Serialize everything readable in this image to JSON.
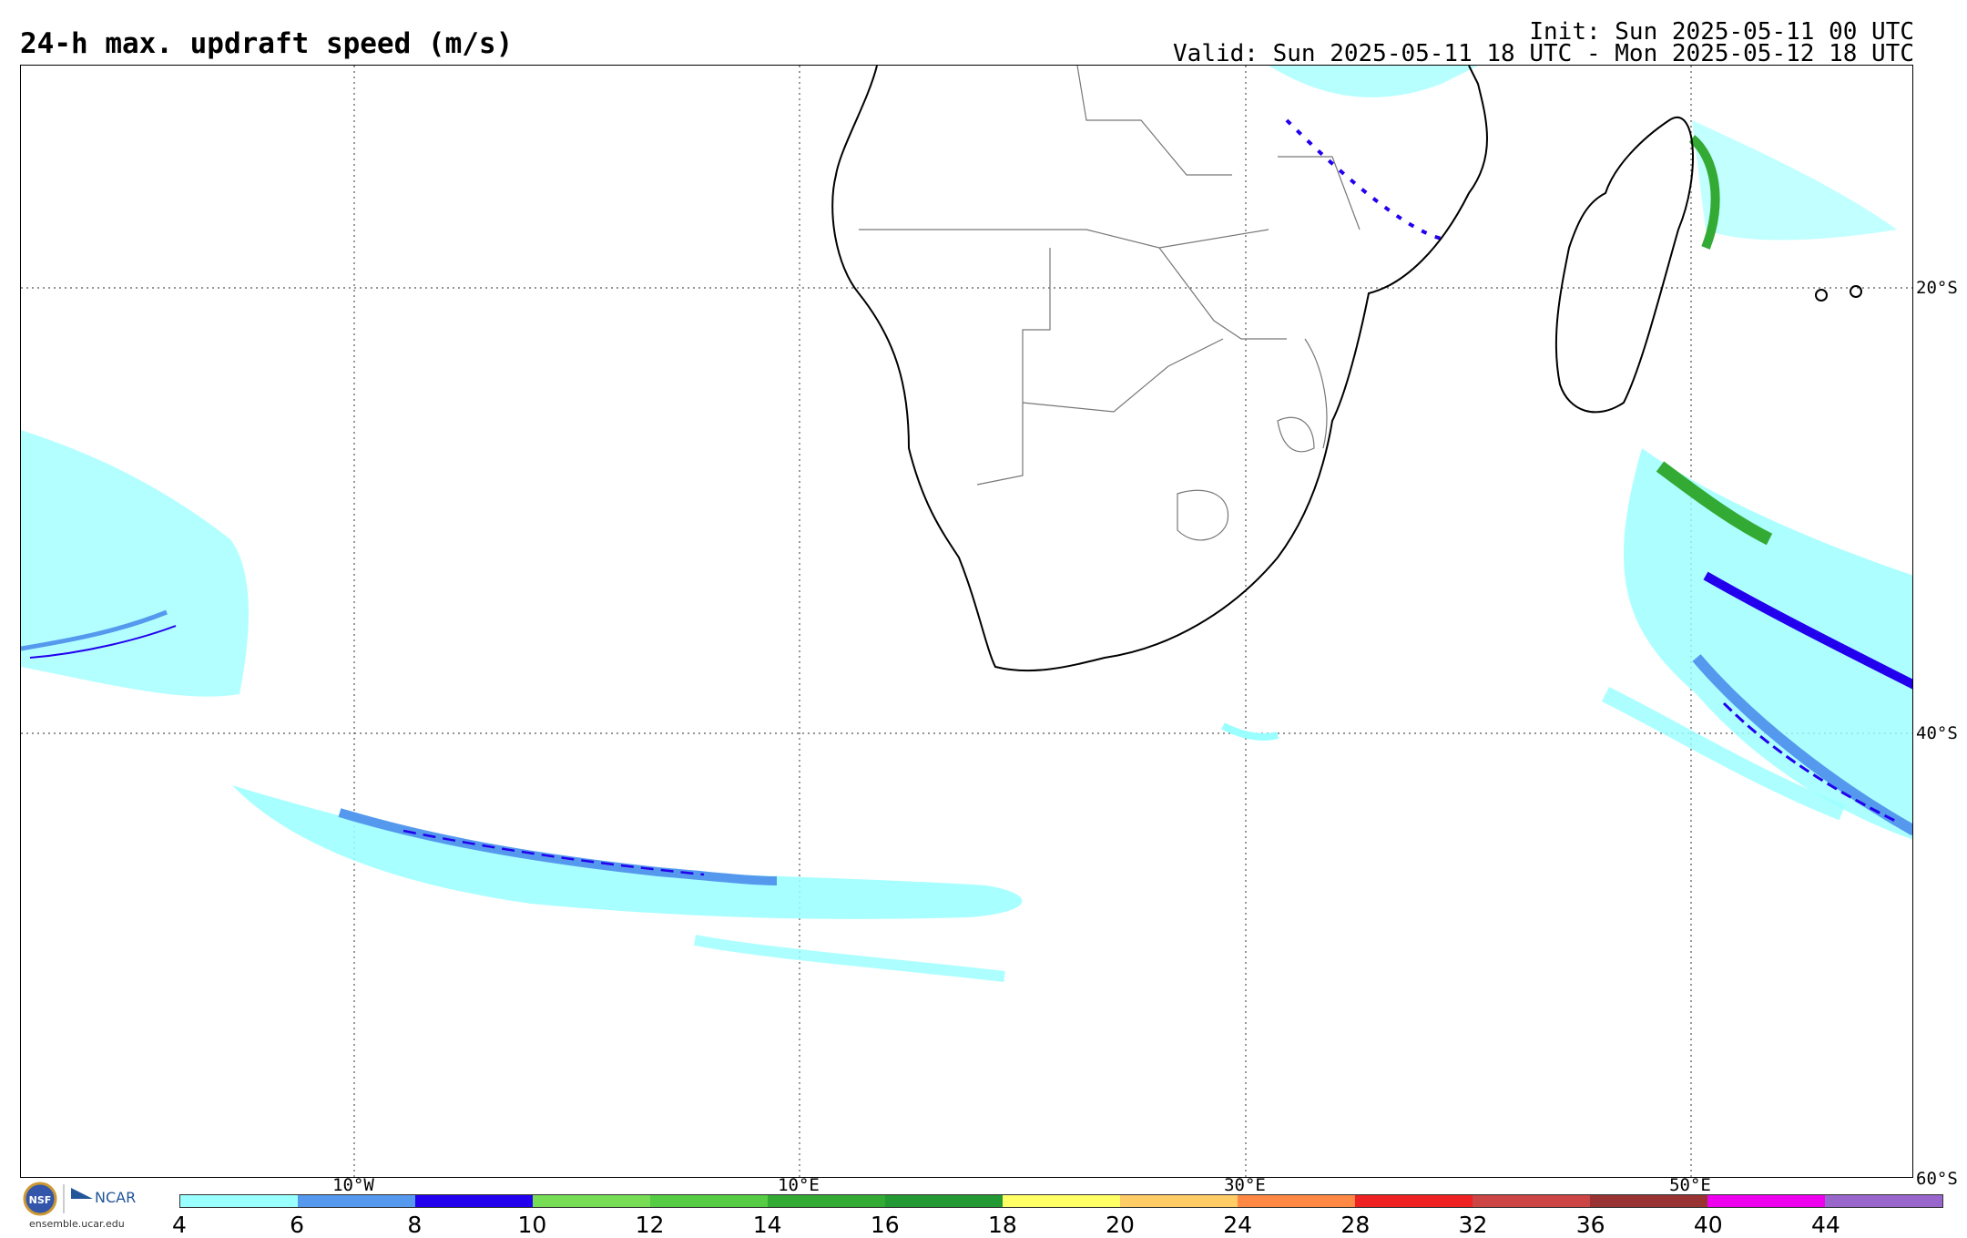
{
  "header": {
    "title": "24-h max. updraft speed (m/s)",
    "init": "Init: Sun 2025-05-11 00 UTC",
    "valid": "Valid: Sun 2025-05-11 18 UTC - Mon 2025-05-12 18 UTC"
  },
  "map": {
    "lat_labels": [
      "20°S",
      "40°S",
      "60°S"
    ],
    "lon_labels": [
      "10°W",
      "10°E",
      "30°E",
      "50°E"
    ],
    "gridlines": "dotted",
    "regions": [
      "southern Africa",
      "Madagascar"
    ]
  },
  "colorbar": {
    "tick_labels": [
      "4",
      "6",
      "8",
      "10",
      "12",
      "14",
      "16",
      "18",
      "20",
      "24",
      "28",
      "32",
      "36",
      "40",
      "44"
    ],
    "colors": [
      "#99ffff",
      "#5599ee",
      "#2200ee",
      "#77dd55",
      "#55cc44",
      "#33aa33",
      "#229933",
      "#ffff66",
      "#ffcc66",
      "#ff8844",
      "#ee2222",
      "#cc4444",
      "#993333",
      "#ee00ee",
      "#9966cc"
    ]
  },
  "footer": {
    "logo_nsf": "NSF",
    "logo_ncar": "NCAR",
    "url": "ensemble.ucar.edu"
  }
}
